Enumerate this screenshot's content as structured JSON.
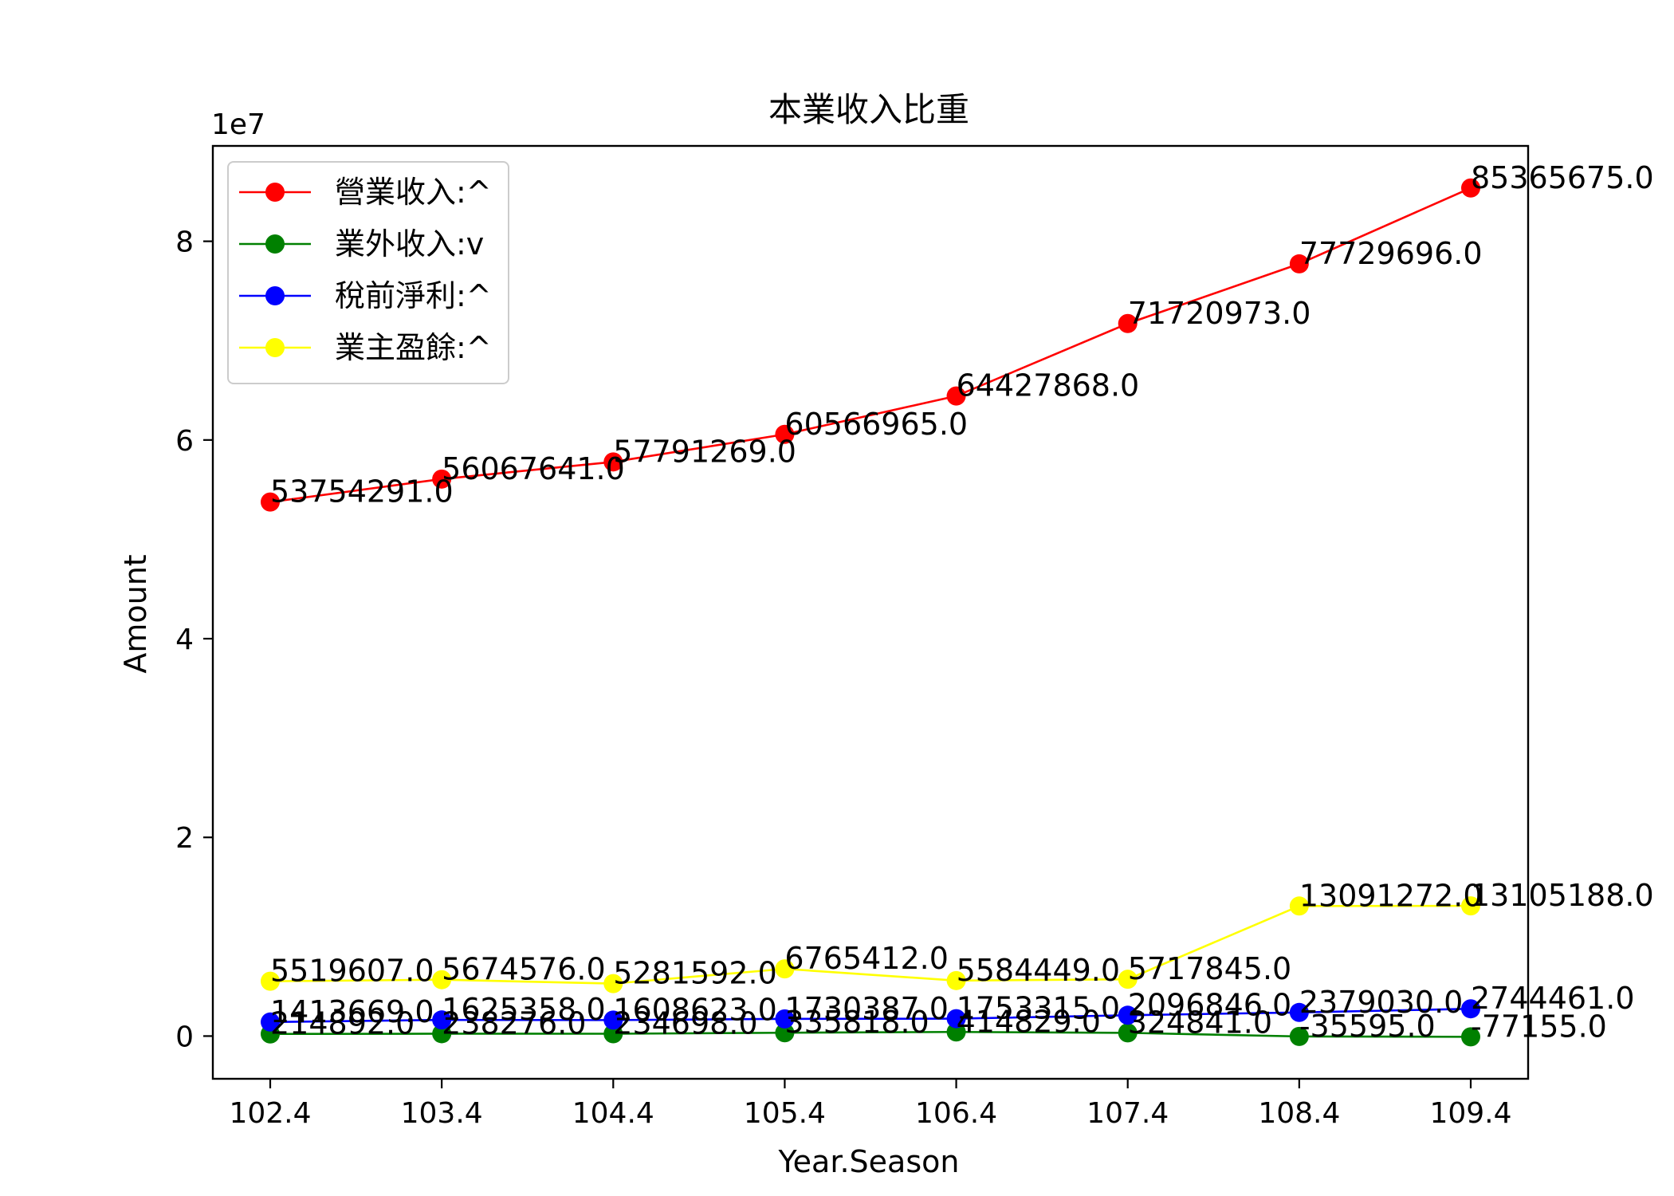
{
  "chart_data": {
    "type": "line",
    "title": "本業收入比重",
    "xlabel": "Year.Season",
    "ylabel": "Amount",
    "y_exponent_label": "1e7",
    "categories": [
      "102.4",
      "103.4",
      "104.4",
      "105.4",
      "106.4",
      "107.4",
      "108.4",
      "109.4"
    ],
    "y_ticks": [
      0,
      2,
      4,
      6,
      8
    ],
    "ylim": [
      -4300000,
      89600000
    ],
    "y_scale": 10000000,
    "legend_position": "upper-left",
    "series": [
      {
        "name": "營業收入:^",
        "color": "#ff0000",
        "values": [
          53754291,
          56067641,
          57791269,
          60566965,
          64427868,
          71720973,
          77729696,
          85365675
        ],
        "labels": [
          "53754291.0",
          "56067641.0",
          "57791269.0",
          "60566965.0",
          "64427868.0",
          "71720973.0",
          "77729696.0",
          "85365675.0"
        ]
      },
      {
        "name": "業外收入:v",
        "color": "#008000",
        "values": [
          214892,
          238276,
          234698,
          335818,
          414829,
          324841,
          -35595,
          -77155
        ],
        "labels": [
          "214892.0",
          "238276.0",
          "234698.0",
          "335818.0",
          "414829.0",
          "324841.0",
          "-35595.0",
          "-77155.0"
        ]
      },
      {
        "name": "稅前淨利:^",
        "color": "#0000ff",
        "values": [
          1413669,
          1625358,
          1608623,
          1730387,
          1753315,
          2096846,
          2379030,
          2744461
        ],
        "labels": [
          "1413669.0",
          "1625358.0",
          "1608623.0",
          "1730387.0",
          "1753315.0",
          "2096846.0",
          "2379030.0",
          "2744461.0"
        ]
      },
      {
        "name": "業主盈餘:^",
        "color": "#ffff00",
        "values": [
          5519607,
          5674576,
          5281592,
          6765412,
          5584449,
          5717845,
          13091272,
          13105188
        ],
        "labels": [
          "5519607.0",
          "5674576.0",
          "5281592.0",
          "6765412.0",
          "5584449.0",
          "5717845.0",
          "13091272.0",
          "13105188.0"
        ]
      }
    ]
  }
}
